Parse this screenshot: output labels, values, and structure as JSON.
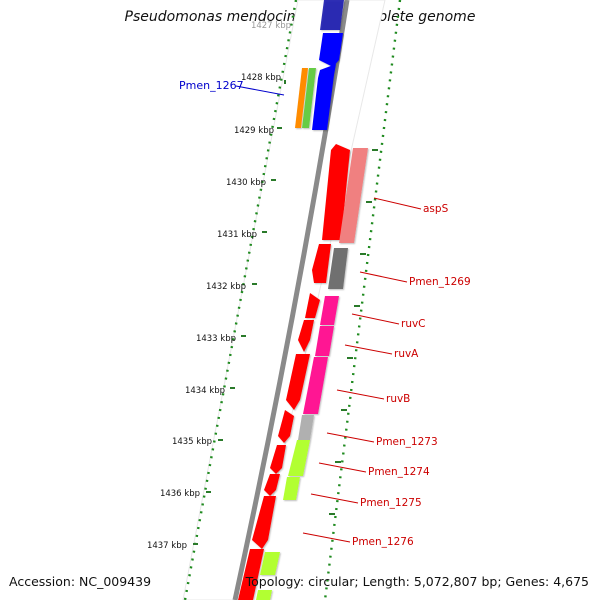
{
  "title": "Pseudomonas mendocina ymp, complete genome",
  "accession": "Accession: NC_009439",
  "topology": "Topology: circular; Length: 5,072,807 bp; Genes: 4,675",
  "top_partial_tick": "1427 kbp",
  "ticks": [
    "1428 kbp",
    "1429 kbp",
    "1430 kbp",
    "1431 kbp",
    "1432 kbp",
    "1433 kbp",
    "1434 kbp",
    "1435 kbp",
    "1436 kbp",
    "1437 kbp"
  ],
  "left_gene_label": {
    "text": "Pmen_1267",
    "color": "#0000cc"
  },
  "right_gene_labels": [
    "aspS",
    "Pmen_1269",
    "ruvC",
    "ruvA",
    "ruvB",
    "Pmen_1273",
    "Pmen_1274",
    "Pmen_1275",
    "Pmen_1276"
  ],
  "colors": {
    "tick_major": "#2a7a2a",
    "dots": "#1f8a1f",
    "label_red": "#cc0000",
    "backbone": "#8a8a8a",
    "cds_red": "#ff0000",
    "blue": "#0000ff",
    "orange": "#ff8c00",
    "green": "#66cc44",
    "salmon": "#f08080",
    "darkgray": "#707070",
    "magenta": "#ff1493",
    "lightgray": "#b0b0b0",
    "lime": "#b2ff33"
  }
}
